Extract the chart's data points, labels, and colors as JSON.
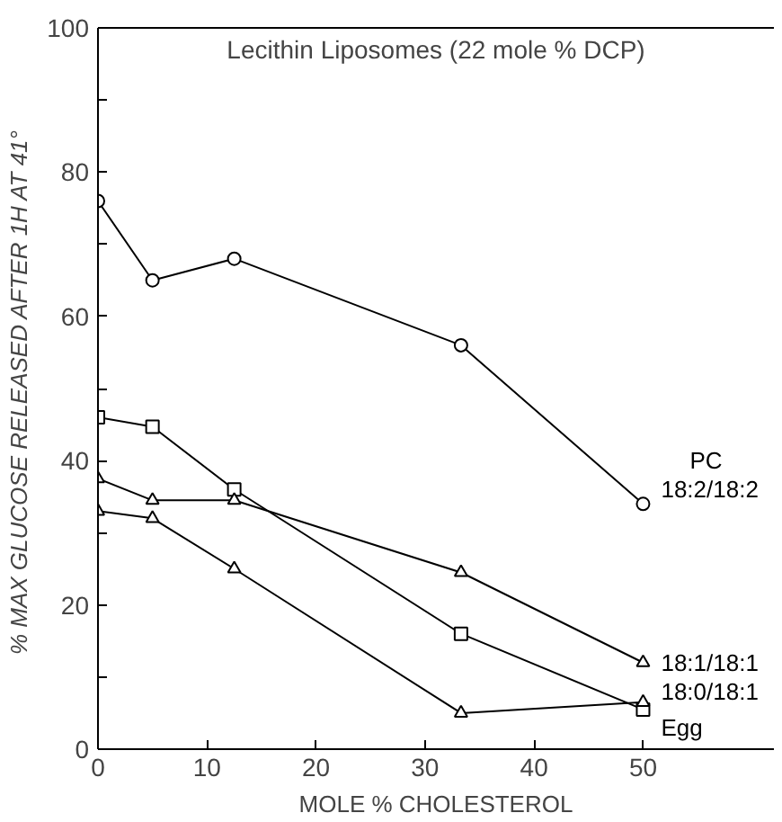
{
  "chart_data": {
    "type": "line",
    "title": "Lecithin Liposomes (22 mole % DCP)",
    "xlabel": "MOLE % CHOLESTEROL",
    "ylabel": "% MAX GLUCOSE RELEASED AFTER 1H  AT 41°",
    "x": [
      0,
      5,
      12.5,
      33.3,
      50
    ],
    "series": [
      {
        "name": "PC\n18:2/18:2",
        "color": "#000000",
        "marker": "circle",
        "values": [
          76,
          65,
          68,
          56,
          34
        ]
      },
      {
        "name": "18:1/18:1",
        "color": "#000000",
        "marker": "triangle",
        "values": [
          37.5,
          34.5,
          34.5,
          24.5,
          12
        ]
      },
      {
        "name": "18:0/18:1",
        "color": "#000000",
        "marker": "triangle",
        "values": [
          33,
          32,
          25,
          5,
          6.5
        ]
      },
      {
        "name": "Egg",
        "color": "#000000",
        "marker": "square",
        "values": [
          46,
          44.7,
          36,
          16,
          5.5
        ]
      }
    ],
    "xlim": [
      0,
      62
    ],
    "ylim": [
      0,
      100
    ],
    "xticks": [
      0,
      10,
      20,
      30,
      40,
      50
    ],
    "yticks": [
      0,
      {
        "value": 10,
        "label": null
      },
      20,
      {
        "value": 30,
        "label": null
      },
      40,
      {
        "value": 50,
        "label": null
      },
      60,
      {
        "value": 70,
        "label": null
      },
      80,
      {
        "value": 90,
        "label": null
      },
      100
    ],
    "grid": false,
    "line_style": "solid"
  }
}
